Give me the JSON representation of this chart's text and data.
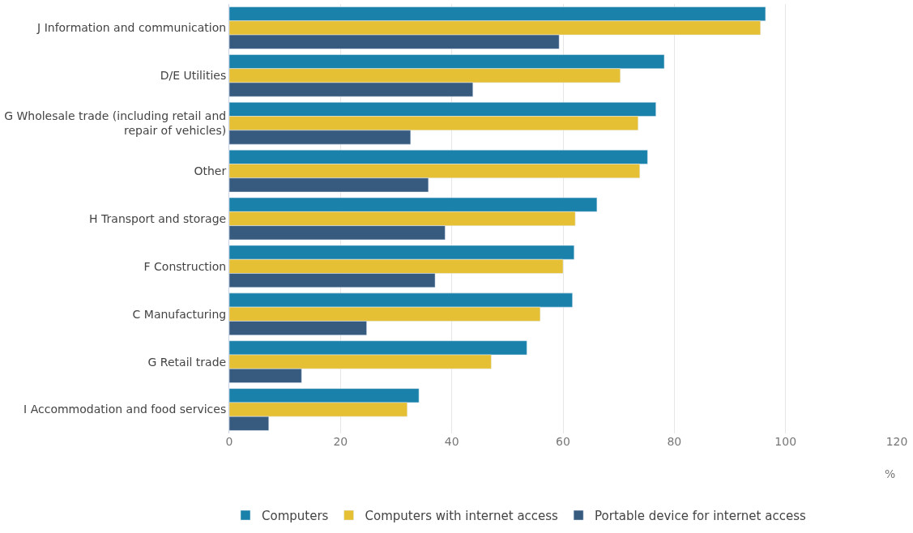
{
  "chart_data": {
    "type": "bar",
    "orientation": "horizontal",
    "xlabel": "%",
    "categories": [
      "J Information and communication",
      "D/E Utilities",
      "G Wholesale trade (including retail and repair of vehicles)",
      "Other",
      "H Transport and storage",
      "F Construction",
      "C Manufacturing",
      "G Retail trade",
      "I Accommodation and food services"
    ],
    "series": [
      {
        "name": "Computers",
        "color": "#1a82aa",
        "values": [
          96.4,
          78.2,
          76.7,
          75.2,
          66.1,
          62.0,
          61.7,
          53.5,
          34.1
        ]
      },
      {
        "name": "Computers with internet access",
        "color": "#e5c035",
        "values": [
          95.5,
          70.3,
          73.5,
          73.8,
          62.2,
          60.0,
          55.9,
          47.1,
          32.0
        ]
      },
      {
        "name": "Portable device for internet access",
        "color": "#375a7f",
        "values": [
          59.3,
          43.8,
          32.6,
          35.8,
          38.8,
          37.0,
          24.7,
          13.0,
          7.1
        ]
      }
    ],
    "xlim": [
      0,
      120
    ],
    "xticks": [
      0,
      20,
      40,
      60,
      80,
      100,
      120
    ],
    "grid": "x",
    "legend": "bottom left"
  }
}
